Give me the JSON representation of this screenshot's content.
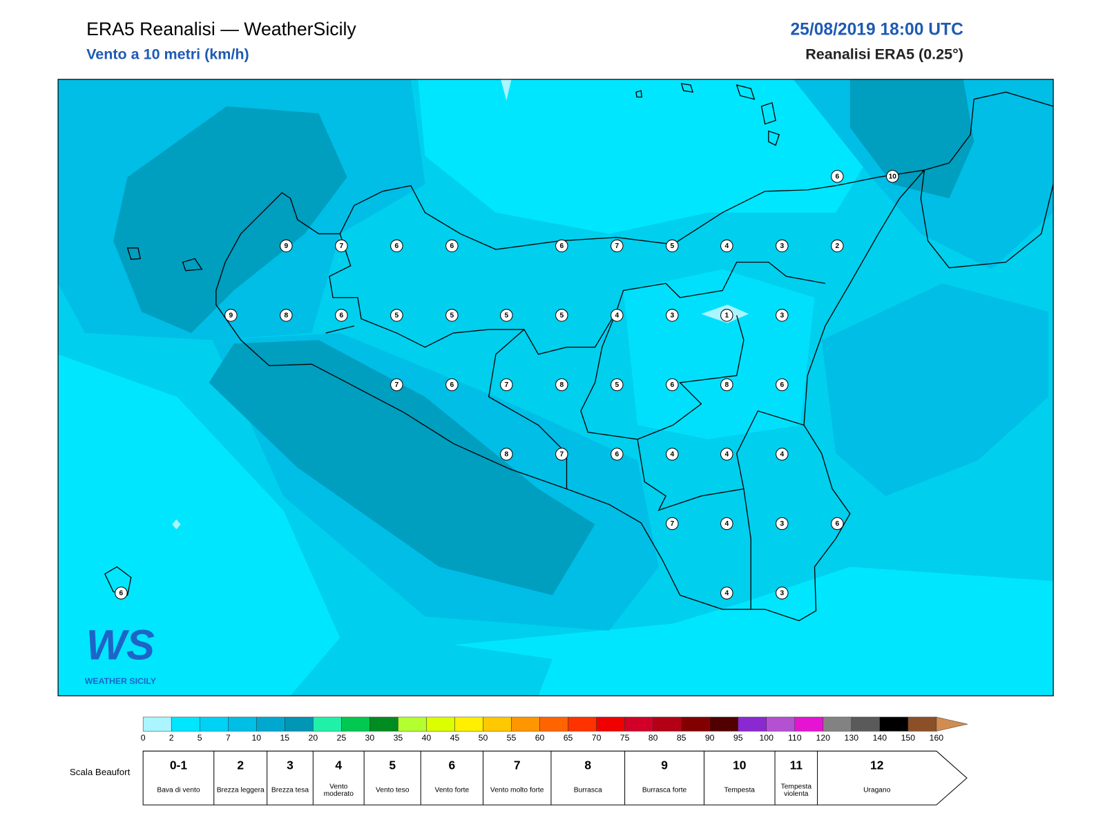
{
  "header": {
    "title": "ERA5 Reanalisi — WeatherSicily",
    "subtitle": "Vento a 10 metri (km/h)",
    "date": "25/08/2019 18:00 UTC",
    "model": "Reanalisi ERA5 (0.25°)"
  },
  "map": {
    "stations": [
      9,
      7,
      6,
      6,
      6,
      7,
      5,
      4,
      3,
      2,
      6,
      10,
      9,
      8,
      6,
      5,
      5,
      5,
      5,
      4,
      3,
      1,
      3,
      7,
      6,
      7,
      8,
      5,
      6,
      8,
      6,
      8,
      7,
      6,
      4,
      4,
      4,
      7,
      4,
      3,
      6,
      4,
      3,
      6
    ]
  },
  "logo": {
    "letters": "WS",
    "text": "WEATHER SICILY"
  },
  "colorbar": {
    "ticks": [
      0,
      2,
      5,
      7,
      10,
      15,
      20,
      25,
      30,
      35,
      40,
      45,
      50,
      55,
      60,
      65,
      70,
      75,
      80,
      85,
      90,
      95,
      100,
      110,
      120,
      130,
      140,
      150,
      160
    ],
    "colors": [
      "#aaf5ff",
      "#00e6ff",
      "#00d2f5",
      "#00bee6",
      "#00a8d0",
      "#0096b4",
      "#20f0a8",
      "#00c850",
      "#008c20",
      "#b4ff30",
      "#dcff00",
      "#fff000",
      "#ffc800",
      "#ff9600",
      "#ff6400",
      "#ff3200",
      "#f00000",
      "#d20028",
      "#b40014",
      "#820000",
      "#500000",
      "#8c28d2",
      "#b450d2",
      "#e614d2",
      "#828282",
      "#5a5a5a",
      "#000000",
      "#8c5028",
      "#d28c50"
    ]
  },
  "beaufort": {
    "label": "Scala Beaufort",
    "scale": [
      {
        "force": "0-1",
        "name": "Bava di vento"
      },
      {
        "force": 2,
        "name": "Brezza leggera"
      },
      {
        "force": 3,
        "name": "Brezza tesa"
      },
      {
        "force": 4,
        "name": "Vento moderato"
      },
      {
        "force": 5,
        "name": "Vento teso"
      },
      {
        "force": 6,
        "name": "Vento forte"
      },
      {
        "force": 7,
        "name": "Vento molto forte"
      },
      {
        "force": 8,
        "name": "Burrasca"
      },
      {
        "force": 9,
        "name": "Burrasca forte"
      },
      {
        "force": 10,
        "name": "Tempesta"
      },
      {
        "force": 11,
        "name": "Tempesta violenta"
      },
      {
        "force": 12,
        "name": "Uragano"
      }
    ]
  }
}
